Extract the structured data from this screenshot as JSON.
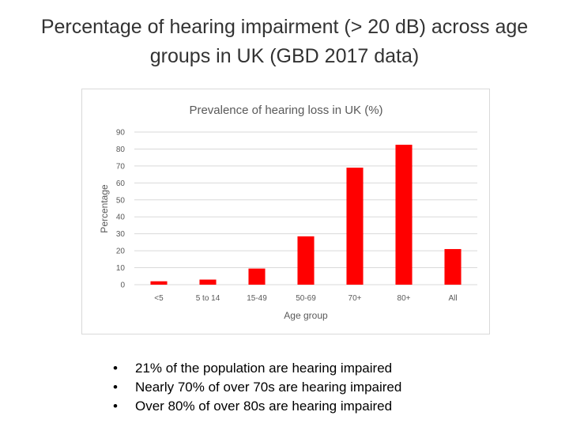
{
  "slide": {
    "title_line1": "Percentage of hearing impairment (> 20 dB) across age",
    "title_line2": "groups in UK (GBD 2017 data)",
    "bullets": [
      "21% of the population are hearing impaired",
      "Nearly 70% of over 70s are hearing impaired",
      "Over 80% of over 80s are hearing impaired"
    ]
  },
  "chart_data": {
    "type": "bar",
    "title": "Prevalence of hearing loss in UK (%)",
    "xlabel": "Age group",
    "ylabel": "Percentage",
    "categories": [
      "<5",
      "5 to 14",
      "15-49",
      "50-69",
      "70+",
      "80+",
      "All"
    ],
    "values": [
      2,
      3,
      9.5,
      28.5,
      69,
      82.5,
      21
    ],
    "ylim": [
      0,
      90
    ],
    "yticks": [
      0,
      10,
      20,
      30,
      40,
      50,
      60,
      70,
      80,
      90
    ],
    "grid": true,
    "legend": "none",
    "bar_color": "#ff0000",
    "grid_color": "#d9d9d9"
  }
}
